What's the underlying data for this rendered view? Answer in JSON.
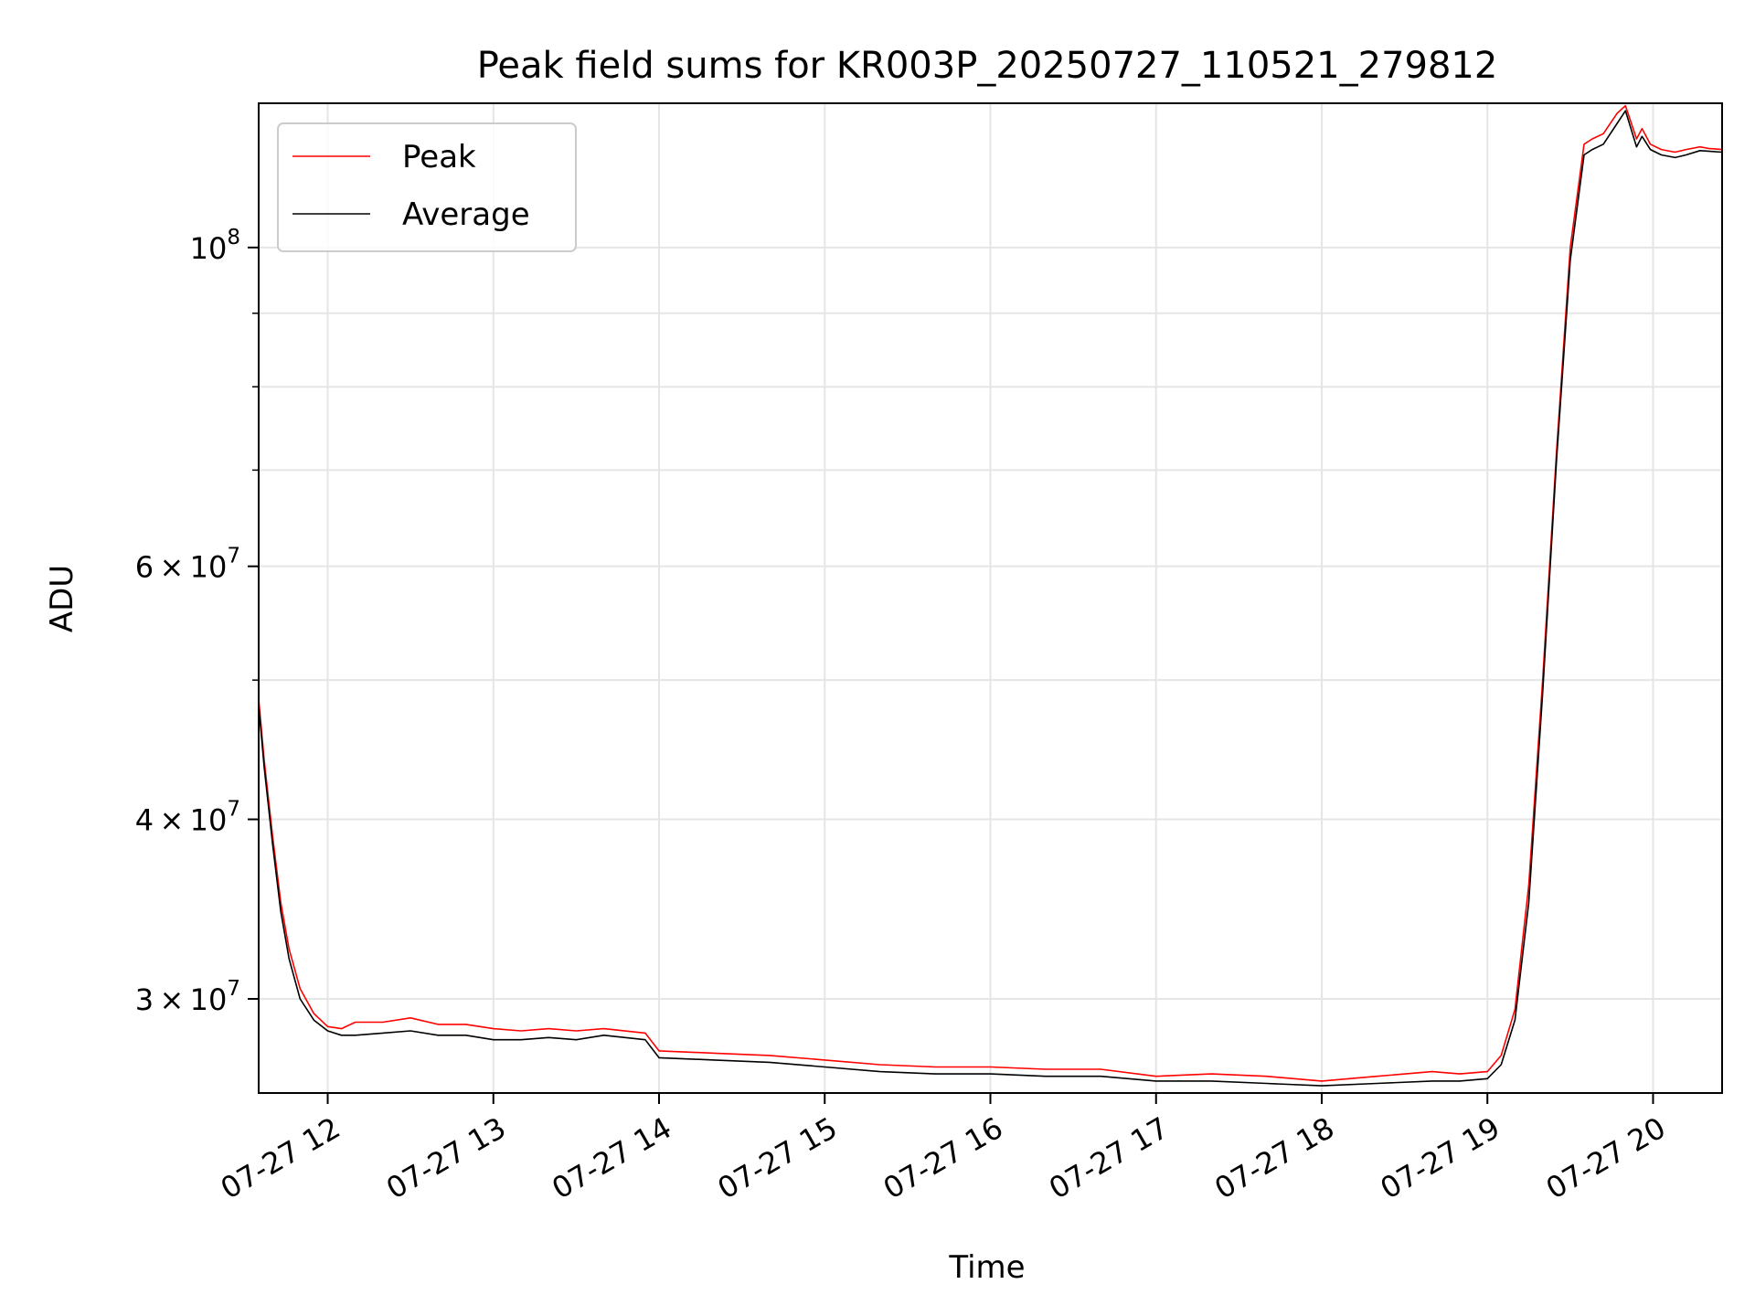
{
  "chart_data": {
    "type": "line",
    "title": "Peak field sums for KR003P_20250727_110521_279812",
    "xlabel": "Time",
    "ylabel": "ADU",
    "yscale": "log",
    "grid": true,
    "legend": "upper-left",
    "xlim": [
      "2025-07-27 11:35",
      "2025-07-27 20:25"
    ],
    "ylim": [
      25800000,
      126000000
    ],
    "x_ticks": [
      {
        "label": "07-27 12",
        "value": "2025-07-27 12:00"
      },
      {
        "label": "07-27 13",
        "value": "2025-07-27 13:00"
      },
      {
        "label": "07-27 14",
        "value": "2025-07-27 14:00"
      },
      {
        "label": "07-27 15",
        "value": "2025-07-27 15:00"
      },
      {
        "label": "07-27 16",
        "value": "2025-07-27 16:00"
      },
      {
        "label": "07-27 17",
        "value": "2025-07-27 17:00"
      },
      {
        "label": "07-27 18",
        "value": "2025-07-27 18:00"
      },
      {
        "label": "07-27 19",
        "value": "2025-07-27 19:00"
      },
      {
        "label": "07-27 20",
        "value": "2025-07-27 20:00"
      }
    ],
    "y_ticks": [
      {
        "value": 30000000,
        "base": "3",
        "exp": "7"
      },
      {
        "value": 40000000,
        "base": "4",
        "exp": "7"
      },
      {
        "value": 60000000,
        "base": "6",
        "exp": "7"
      },
      {
        "value": 100000000,
        "base": "",
        "exp": "8"
      }
    ],
    "y_minor_ticks": [
      50000000,
      70000000,
      80000000,
      90000000
    ],
    "series": [
      {
        "name": "Peak",
        "color": "#ff0000",
        "x": [
          "2025-07-27 11:35",
          "2025-07-27 11:37",
          "2025-07-27 11:40",
          "2025-07-27 11:43",
          "2025-07-27 11:46",
          "2025-07-27 11:50",
          "2025-07-27 11:55",
          "2025-07-27 12:00",
          "2025-07-27 12:05",
          "2025-07-27 12:10",
          "2025-07-27 12:20",
          "2025-07-27 12:30",
          "2025-07-27 12:40",
          "2025-07-27 12:50",
          "2025-07-27 13:00",
          "2025-07-27 13:10",
          "2025-07-27 13:20",
          "2025-07-27 13:30",
          "2025-07-27 13:40",
          "2025-07-27 13:55",
          "2025-07-27 14:00",
          "2025-07-27 14:20",
          "2025-07-27 14:40",
          "2025-07-27 15:00",
          "2025-07-27 15:20",
          "2025-07-27 15:40",
          "2025-07-27 16:00",
          "2025-07-27 16:20",
          "2025-07-27 16:40",
          "2025-07-27 17:00",
          "2025-07-27 17:20",
          "2025-07-27 17:40",
          "2025-07-27 18:00",
          "2025-07-27 18:20",
          "2025-07-27 18:40",
          "2025-07-27 18:50",
          "2025-07-27 19:00",
          "2025-07-27 19:05",
          "2025-07-27 19:10",
          "2025-07-27 19:15",
          "2025-07-27 19:20",
          "2025-07-27 19:25",
          "2025-07-27 19:30",
          "2025-07-27 19:35",
          "2025-07-27 19:38",
          "2025-07-27 19:42",
          "2025-07-27 19:47",
          "2025-07-27 19:50",
          "2025-07-27 19:54",
          "2025-07-27 19:56",
          "2025-07-27 19:59",
          "2025-07-27 20:03",
          "2025-07-27 20:08",
          "2025-07-27 20:12",
          "2025-07-27 20:17",
          "2025-07-27 20:20",
          "2025-07-27 20:25"
        ],
        "y": [
          48500000,
          44000000,
          39000000,
          35000000,
          32500000,
          30500000,
          29300000,
          28700000,
          28600000,
          28900000,
          28900000,
          29100000,
          28800000,
          28800000,
          28600000,
          28500000,
          28600000,
          28500000,
          28600000,
          28400000,
          27600000,
          27500000,
          27400000,
          27200000,
          27000000,
          26900000,
          26900000,
          26800000,
          26800000,
          26500000,
          26600000,
          26500000,
          26300000,
          26500000,
          26700000,
          26600000,
          26700000,
          27400000,
          29500000,
          36000000,
          50000000,
          72000000,
          100000000,
          118000000,
          119000000,
          120000000,
          124000000,
          125500000,
          119000000,
          121000000,
          118000000,
          117000000,
          116500000,
          117000000,
          117500000,
          117200000,
          117000000
        ]
      },
      {
        "name": "Average",
        "color": "#000000",
        "x": [
          "2025-07-27 11:35",
          "2025-07-27 11:37",
          "2025-07-27 11:40",
          "2025-07-27 11:43",
          "2025-07-27 11:46",
          "2025-07-27 11:50",
          "2025-07-27 11:55",
          "2025-07-27 12:00",
          "2025-07-27 12:05",
          "2025-07-27 12:10",
          "2025-07-27 12:20",
          "2025-07-27 12:30",
          "2025-07-27 12:40",
          "2025-07-27 12:50",
          "2025-07-27 13:00",
          "2025-07-27 13:10",
          "2025-07-27 13:20",
          "2025-07-27 13:30",
          "2025-07-27 13:40",
          "2025-07-27 13:55",
          "2025-07-27 14:00",
          "2025-07-27 14:20",
          "2025-07-27 14:40",
          "2025-07-27 15:00",
          "2025-07-27 15:20",
          "2025-07-27 15:40",
          "2025-07-27 16:00",
          "2025-07-27 16:20",
          "2025-07-27 16:40",
          "2025-07-27 17:00",
          "2025-07-27 17:20",
          "2025-07-27 17:40",
          "2025-07-27 18:00",
          "2025-07-27 18:20",
          "2025-07-27 18:40",
          "2025-07-27 18:50",
          "2025-07-27 19:00",
          "2025-07-27 19:05",
          "2025-07-27 19:10",
          "2025-07-27 19:15",
          "2025-07-27 19:20",
          "2025-07-27 19:25",
          "2025-07-27 19:30",
          "2025-07-27 19:35",
          "2025-07-27 19:38",
          "2025-07-27 19:42",
          "2025-07-27 19:47",
          "2025-07-27 19:50",
          "2025-07-27 19:54",
          "2025-07-27 19:56",
          "2025-07-27 19:59",
          "2025-07-27 20:03",
          "2025-07-27 20:08",
          "2025-07-27 20:12",
          "2025-07-27 20:17",
          "2025-07-27 20:20",
          "2025-07-27 20:25"
        ],
        "y": [
          48000000,
          43500000,
          38500000,
          34500000,
          32000000,
          30000000,
          29000000,
          28500000,
          28300000,
          28300000,
          28400000,
          28500000,
          28300000,
          28300000,
          28100000,
          28100000,
          28200000,
          28100000,
          28300000,
          28100000,
          27300000,
          27200000,
          27100000,
          26900000,
          26700000,
          26600000,
          26600000,
          26500000,
          26500000,
          26300000,
          26300000,
          26200000,
          26100000,
          26200000,
          26300000,
          26300000,
          26400000,
          27000000,
          29000000,
          35000000,
          49000000,
          71000000,
          98000000,
          116000000,
          117000000,
          118000000,
          122000000,
          124500000,
          117500000,
          119500000,
          117000000,
          116000000,
          115500000,
          116000000,
          116800000,
          116700000,
          116500000
        ]
      }
    ]
  }
}
